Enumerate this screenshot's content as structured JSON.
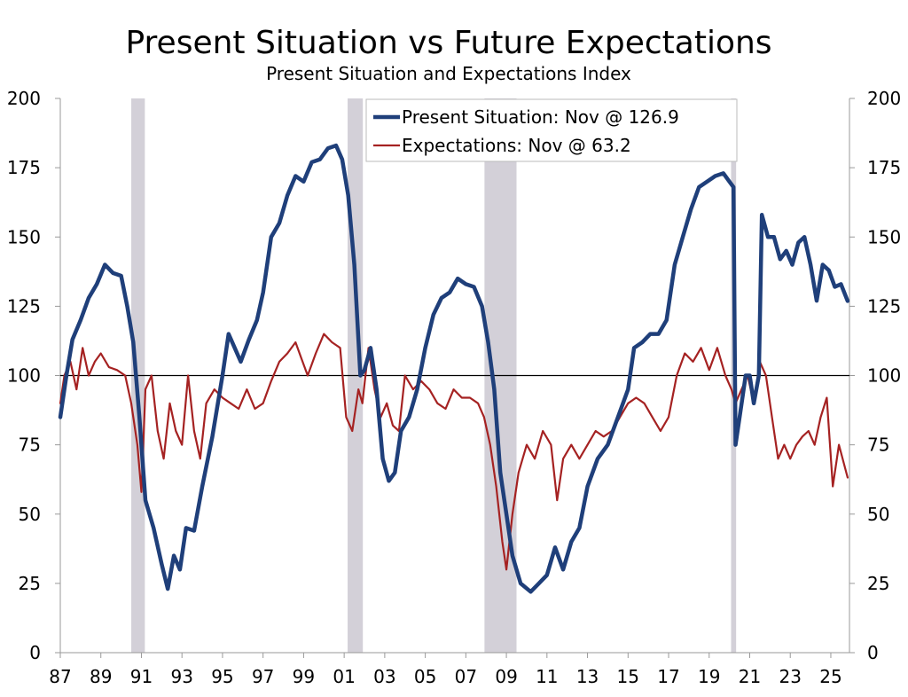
{
  "chart_data": {
    "type": "line",
    "title": "Present Situation vs Future Expectations",
    "subtitle": "Present Situation and Expectations Index",
    "ylim": [
      0,
      200
    ],
    "y_ticks": [
      0,
      25,
      50,
      75,
      100,
      125,
      150,
      175,
      200
    ],
    "y_tick_labels": [
      "0",
      "25",
      "50",
      "75",
      "100",
      "125",
      "150",
      "175",
      "200"
    ],
    "xlim": [
      1987.0,
      2025.92
    ],
    "x_ticks": [
      1987,
      1989,
      1991,
      1993,
      1995,
      1997,
      1999,
      2001,
      2003,
      2005,
      2007,
      2009,
      2011,
      2013,
      2015,
      2017,
      2019,
      2021,
      2023,
      2025
    ],
    "x_tick_labels": [
      "87",
      "89",
      "91",
      "93",
      "95",
      "97",
      "99",
      "01",
      "03",
      "05",
      "07",
      "09",
      "11",
      "13",
      "15",
      "17",
      "19",
      "21",
      "23",
      "25"
    ],
    "reference_line": 100,
    "recessions": [
      [
        1990.5,
        1991.17
      ],
      [
        2001.17,
        2001.92
      ],
      [
        2007.92,
        2009.5
      ],
      [
        2020.08,
        2020.33
      ]
    ],
    "legend": {
      "position": "top-center",
      "entries": [
        "Present Situation: Nov @ 126.9",
        "Expectations: Nov @ 63.2"
      ]
    },
    "colors": {
      "present": "#1f3f7a",
      "expectations": "#a52222",
      "recession": "#d3d0d8",
      "axis": "#999999"
    },
    "series": [
      {
        "name": "Present Situation",
        "x": [
          1987.0,
          1987.3,
          1987.6,
          1988.0,
          1988.4,
          1988.8,
          1989.2,
          1989.6,
          1990.0,
          1990.3,
          1990.6,
          1990.9,
          1991.2,
          1991.6,
          1992.0,
          1992.3,
          1992.6,
          1992.9,
          1993.2,
          1993.6,
          1994.0,
          1994.5,
          1995.0,
          1995.3,
          1995.6,
          1995.9,
          1996.3,
          1996.7,
          1997.0,
          1997.4,
          1997.8,
          1998.2,
          1998.6,
          1999.0,
          1999.4,
          1999.8,
          2000.2,
          2000.6,
          2000.9,
          2001.2,
          2001.5,
          2001.8,
          2002.0,
          2002.3,
          2002.6,
          2002.9,
          2003.2,
          2003.5,
          2003.8,
          2004.2,
          2004.6,
          2005.0,
          2005.4,
          2005.8,
          2006.2,
          2006.6,
          2007.0,
          2007.4,
          2007.8,
          2008.1,
          2008.4,
          2008.7,
          2009.0,
          2009.3,
          2009.7,
          2010.2,
          2010.6,
          2011.0,
          2011.4,
          2011.8,
          2012.2,
          2012.6,
          2013.0,
          2013.5,
          2014.0,
          2014.5,
          2015.0,
          2015.3,
          2015.7,
          2016.1,
          2016.5,
          2016.9,
          2017.3,
          2017.7,
          2018.1,
          2018.5,
          2018.9,
          2019.3,
          2019.7,
          2020.0,
          2020.2,
          2020.3,
          2020.5,
          2020.8,
          2021.0,
          2021.2,
          2021.45,
          2021.6,
          2021.9,
          2022.2,
          2022.5,
          2022.8,
          2023.1,
          2023.4,
          2023.7,
          2024.0,
          2024.3,
          2024.6,
          2024.9,
          2025.2,
          2025.5,
          2025.83
        ],
        "values": [
          85,
          100,
          113,
          120,
          128,
          133,
          140,
          137,
          136,
          125,
          112,
          85,
          55,
          45,
          32,
          23,
          35,
          30,
          45,
          44,
          60,
          78,
          100,
          115,
          110,
          105,
          113,
          120,
          130,
          150,
          155,
          165,
          172,
          170,
          177,
          178,
          182,
          183,
          178,
          165,
          140,
          100,
          102,
          110,
          95,
          70,
          62,
          65,
          80,
          85,
          95,
          110,
          122,
          128,
          130,
          135,
          133,
          132,
          125,
          112,
          95,
          65,
          50,
          35,
          25,
          22,
          25,
          28,
          38,
          30,
          40,
          45,
          60,
          70,
          75,
          85,
          95,
          110,
          112,
          115,
          115,
          120,
          140,
          150,
          160,
          168,
          170,
          172,
          173,
          170,
          168,
          75,
          85,
          100,
          100,
          90,
          100,
          158,
          150,
          150,
          142,
          145,
          140,
          148,
          150,
          140,
          127,
          140,
          138,
          132,
          133,
          126.9
        ]
      },
      {
        "name": "Expectations",
        "x": [
          1987.0,
          1987.2,
          1987.5,
          1987.8,
          1988.1,
          1988.4,
          1988.7,
          1989.0,
          1989.4,
          1989.8,
          1990.2,
          1990.5,
          1990.8,
          1991.0,
          1991.2,
          1991.5,
          1991.8,
          1992.1,
          1992.4,
          1992.7,
          1993.0,
          1993.3,
          1993.6,
          1993.9,
          1994.2,
          1994.6,
          1995.0,
          1995.4,
          1995.8,
          1996.2,
          1996.6,
          1997.0,
          1997.4,
          1997.8,
          1998.2,
          1998.6,
          1998.9,
          1999.2,
          1999.6,
          2000.0,
          2000.4,
          2000.8,
          2001.1,
          2001.4,
          2001.7,
          2001.9,
          2002.2,
          2002.5,
          2002.8,
          2003.1,
          2003.4,
          2003.7,
          2004.0,
          2004.4,
          2004.8,
          2005.2,
          2005.6,
          2006.0,
          2006.4,
          2006.8,
          2007.2,
          2007.6,
          2007.9,
          2008.2,
          2008.5,
          2008.8,
          2009.0,
          2009.3,
          2009.6,
          2010.0,
          2010.4,
          2010.8,
          2011.2,
          2011.5,
          2011.8,
          2012.2,
          2012.6,
          2013.0,
          2013.4,
          2013.8,
          2014.2,
          2014.6,
          2015.0,
          2015.4,
          2015.8,
          2016.2,
          2016.6,
          2017.0,
          2017.4,
          2017.8,
          2018.2,
          2018.6,
          2019.0,
          2019.4,
          2019.8,
          2020.1,
          2020.3,
          2020.6,
          2020.9,
          2021.2,
          2021.5,
          2021.8,
          2022.1,
          2022.4,
          2022.7,
          2023.0,
          2023.3,
          2023.6,
          2023.9,
          2024.2,
          2024.5,
          2024.8,
          2025.1,
          2025.4,
          2025.83
        ],
        "values": [
          90,
          100,
          105,
          95,
          110,
          100,
          105,
          108,
          103,
          102,
          100,
          90,
          75,
          58,
          95,
          100,
          80,
          70,
          90,
          80,
          75,
          100,
          80,
          70,
          90,
          95,
          92,
          90,
          88,
          95,
          88,
          90,
          98,
          105,
          108,
          112,
          106,
          100,
          108,
          115,
          112,
          110,
          85,
          80,
          95,
          90,
          110,
          95,
          85,
          90,
          82,
          80,
          100,
          95,
          98,
          95,
          90,
          88,
          95,
          92,
          92,
          90,
          85,
          75,
          60,
          40,
          30,
          50,
          65,
          75,
          70,
          80,
          75,
          55,
          70,
          75,
          70,
          75,
          80,
          78,
          80,
          85,
          90,
          92,
          90,
          85,
          80,
          85,
          100,
          108,
          105,
          110,
          102,
          110,
          100,
          95,
          90,
          95,
          100,
          90,
          105,
          100,
          85,
          70,
          75,
          70,
          75,
          78,
          80,
          75,
          85,
          92,
          60,
          75,
          63.2
        ]
      }
    ]
  }
}
